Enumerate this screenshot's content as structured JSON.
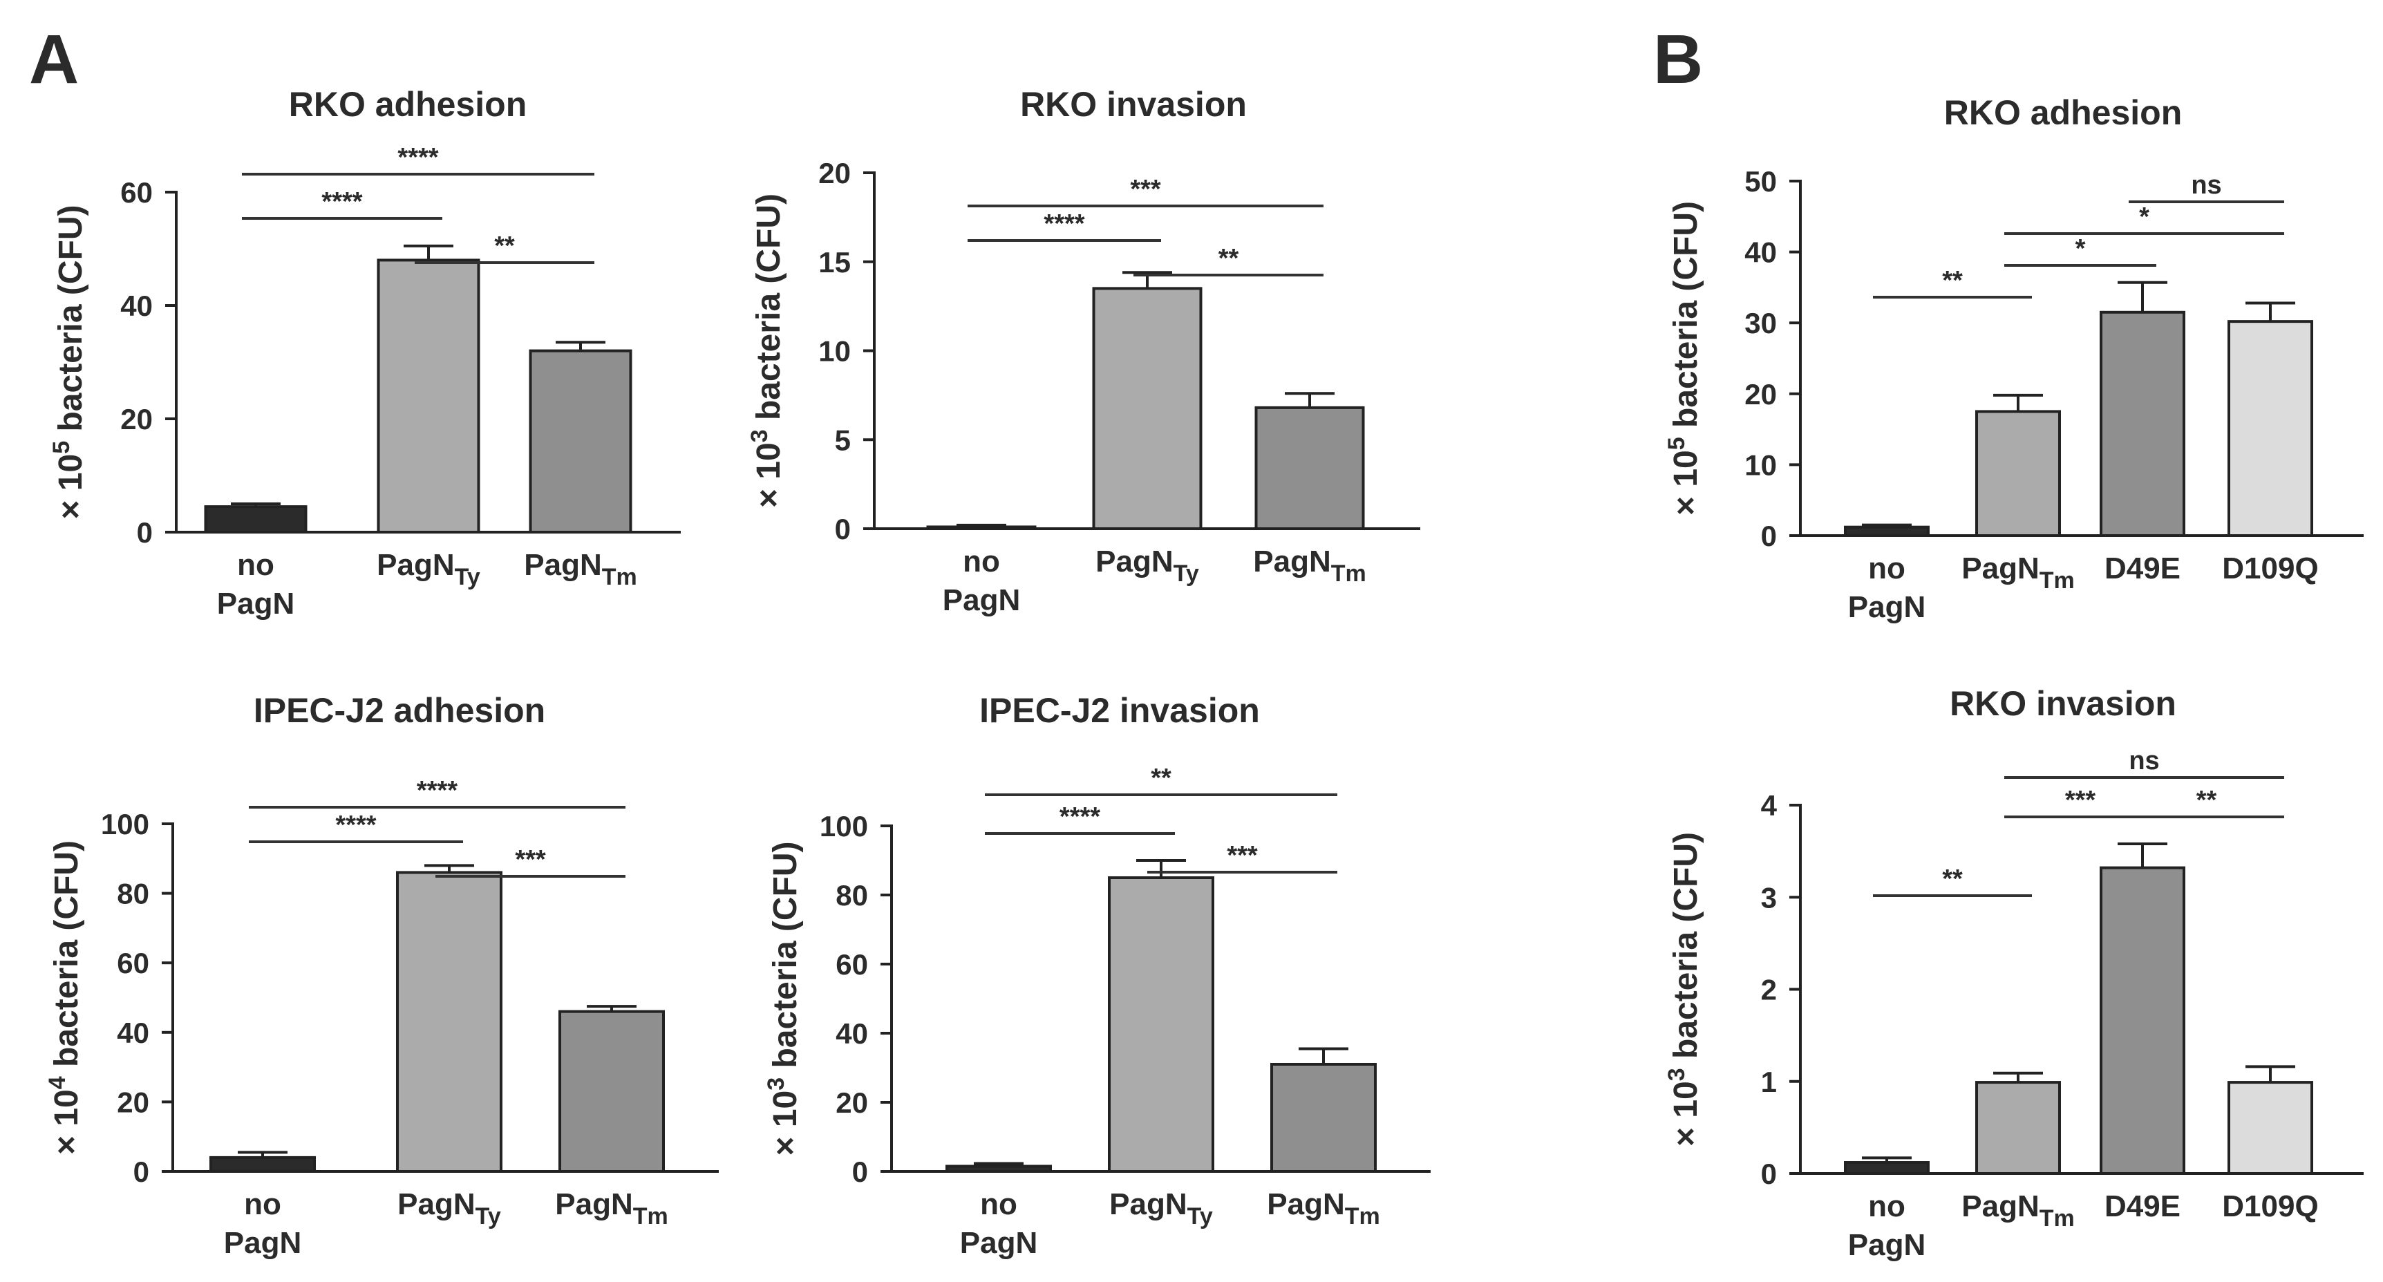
{
  "panels": {
    "A": "A",
    "B": "B"
  },
  "colors": {
    "no_pagn": "#2b2b2b",
    "pagn_ty": "#ababab",
    "pagn_tm": "#8f8f8f",
    "d49e": "#8f8f8f",
    "d109q": "#dcdcdc"
  },
  "chart_data": [
    {
      "id": "a1",
      "panel": "A",
      "type": "bar",
      "title": "RKO adhesion",
      "ylabel": {
        "prefix": "× 10",
        "exp": "5",
        "suffix": " bacteria (CFU)"
      },
      "categories": [
        {
          "line1": "no",
          "line2": "PagN"
        },
        {
          "main": "PagN",
          "sub": "Ty"
        },
        {
          "main": "PagN",
          "sub": "Tm"
        }
      ],
      "values": [
        4.5,
        48,
        32
      ],
      "errors": [
        0.5,
        2.5,
        1.5
      ],
      "colors": [
        "#2b2b2b",
        "#ababab",
        "#8f8f8f"
      ],
      "ylim": [
        0,
        60
      ],
      "yticks": [
        0,
        20,
        40,
        60
      ],
      "significance": [
        {
          "from": 0,
          "to": 2,
          "label": "****"
        },
        {
          "from": 0,
          "to": 1,
          "label": "****"
        },
        {
          "from": 1,
          "to": 2,
          "label": "**"
        }
      ]
    },
    {
      "id": "a2",
      "panel": "A",
      "type": "bar",
      "title": "RKO invasion",
      "ylabel": {
        "prefix": "× 10",
        "exp": "3",
        "suffix": " bacteria (CFU)"
      },
      "categories": [
        {
          "line1": "no",
          "line2": "PagN"
        },
        {
          "main": "PagN",
          "sub": "Ty"
        },
        {
          "main": "PagN",
          "sub": "Tm"
        }
      ],
      "values": [
        0.1,
        13.5,
        6.8
      ],
      "errors": [
        0.1,
        0.9,
        0.8
      ],
      "colors": [
        "#2b2b2b",
        "#ababab",
        "#8f8f8f"
      ],
      "ylim": [
        0,
        20
      ],
      "yticks": [
        0,
        5,
        10,
        15,
        20
      ],
      "significance": [
        {
          "from": 0,
          "to": 2,
          "label": "***"
        },
        {
          "from": 0,
          "to": 1,
          "label": "****"
        },
        {
          "from": 1,
          "to": 2,
          "label": "**"
        }
      ]
    },
    {
      "id": "a3",
      "panel": "A",
      "type": "bar",
      "title": "IPEC-J2 adhesion",
      "ylabel": {
        "prefix": "× 10",
        "exp": "4",
        "suffix": " bacteria (CFU)"
      },
      "categories": [
        {
          "line1": "no",
          "line2": "PagN"
        },
        {
          "main": "PagN",
          "sub": "Ty"
        },
        {
          "main": "PagN",
          "sub": "Tm"
        }
      ],
      "values": [
        4,
        86,
        46
      ],
      "errors": [
        1.5,
        2,
        1.5
      ],
      "colors": [
        "#2b2b2b",
        "#ababab",
        "#8f8f8f"
      ],
      "ylim": [
        0,
        100
      ],
      "yticks": [
        0,
        20,
        40,
        60,
        80,
        100
      ],
      "significance": [
        {
          "from": 0,
          "to": 2,
          "label": "****"
        },
        {
          "from": 0,
          "to": 1,
          "label": "****"
        },
        {
          "from": 1,
          "to": 2,
          "label": "***"
        }
      ]
    },
    {
      "id": "a4",
      "panel": "A",
      "type": "bar",
      "title": "IPEC-J2 invasion",
      "ylabel": {
        "prefix": "× 10",
        "exp": "3",
        "suffix": " bacteria (CFU)"
      },
      "categories": [
        {
          "line1": "no",
          "line2": "PagN"
        },
        {
          "main": "PagN",
          "sub": "Ty"
        },
        {
          "main": "PagN",
          "sub": "Tm"
        }
      ],
      "values": [
        1.5,
        85,
        31
      ],
      "errors": [
        0.8,
        5,
        4.5
      ],
      "colors": [
        "#2b2b2b",
        "#ababab",
        "#8f8f8f"
      ],
      "ylim": [
        0,
        100
      ],
      "yticks": [
        0,
        20,
        40,
        60,
        80,
        100
      ],
      "significance": [
        {
          "from": 0,
          "to": 2,
          "label": "**"
        },
        {
          "from": 0,
          "to": 1,
          "label": "****"
        },
        {
          "from": 1,
          "to": 2,
          "label": "***"
        }
      ]
    },
    {
      "id": "b1",
      "panel": "B",
      "type": "bar",
      "title": "RKO adhesion",
      "ylabel": {
        "prefix": "× 10",
        "exp": "5",
        "suffix": " bacteria (CFU)"
      },
      "categories": [
        {
          "line1": "no",
          "line2": "PagN"
        },
        {
          "main": "PagN",
          "sub": "Tm"
        },
        {
          "main": "D49E"
        },
        {
          "main": "D109Q"
        }
      ],
      "values": [
        1.2,
        17.5,
        31.5,
        30.2
      ],
      "errors": [
        0.3,
        2.3,
        4.2,
        2.6
      ],
      "colors": [
        "#2b2b2b",
        "#ababab",
        "#8f8f8f",
        "#dcdcdc"
      ],
      "ylim": [
        0,
        50
      ],
      "yticks": [
        0,
        10,
        20,
        30,
        40,
        50
      ],
      "significance": [
        {
          "from": 2,
          "to": 3,
          "label": "ns"
        },
        {
          "from": 1,
          "to": 3,
          "label": "*"
        },
        {
          "from": 1,
          "to": 2,
          "label": "*"
        },
        {
          "from": 0,
          "to": 1,
          "label": "**"
        }
      ]
    },
    {
      "id": "b2",
      "panel": "B",
      "type": "bar",
      "title": "RKO invasion",
      "ylabel": {
        "prefix": "× 10",
        "exp": "3",
        "suffix": " bacteria (CFU)"
      },
      "categories": [
        {
          "line1": "no",
          "line2": "PagN"
        },
        {
          "main": "PagN",
          "sub": "Tm"
        },
        {
          "main": "D49E"
        },
        {
          "main": "D109Q"
        }
      ],
      "values": [
        0.12,
        0.99,
        3.32,
        0.99
      ],
      "errors": [
        0.05,
        0.1,
        0.26,
        0.17
      ],
      "colors": [
        "#2b2b2b",
        "#ababab",
        "#8f8f8f",
        "#dcdcdc"
      ],
      "ylim": [
        0,
        4
      ],
      "yticks": [
        0,
        1,
        2,
        3,
        4
      ],
      "significance": [
        {
          "from": 1,
          "to": 3,
          "label": "ns"
        },
        {
          "from": 1,
          "to": 2,
          "label": "***"
        },
        {
          "from": 2,
          "to": 3,
          "label": "**"
        },
        {
          "from": 0,
          "to": 1,
          "label": "**"
        }
      ]
    }
  ]
}
